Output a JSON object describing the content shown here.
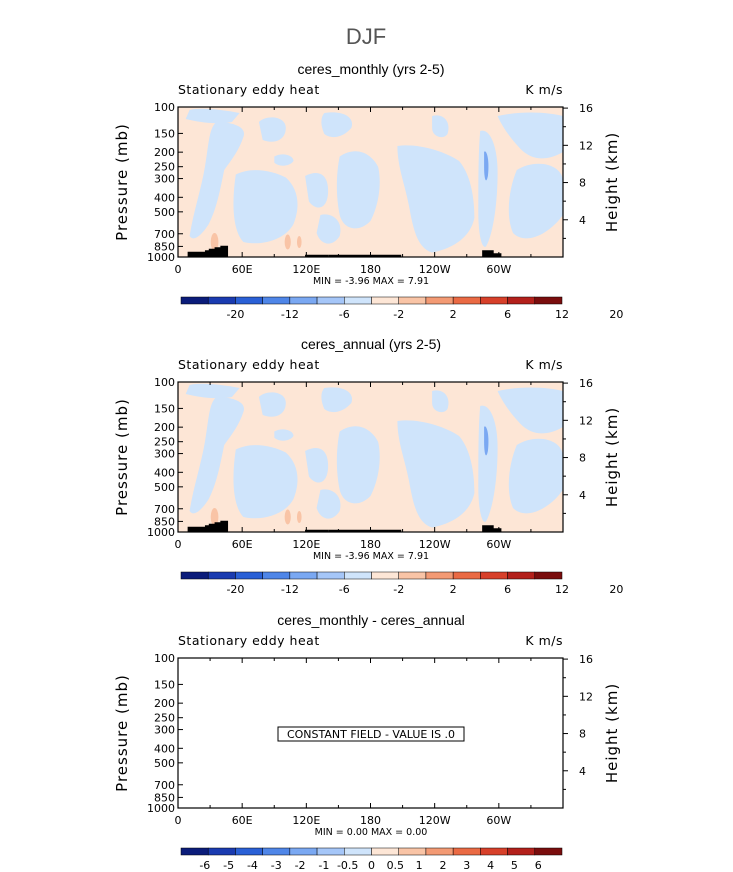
{
  "figure": {
    "season_title": "DJF"
  },
  "chart_data": [
    {
      "type": "heatmap",
      "title": "ceres_monthly (yrs 2-5)",
      "left_label": "Stationary eddy heat",
      "right_label": "K m/s",
      "ylabel": "Pressure (mb)",
      "ylabel_right": "Height (km)",
      "x_ticks": [
        "0",
        "60E",
        "120E",
        "180",
        "120W",
        "60W"
      ],
      "x_tick_lon": [
        0,
        60,
        120,
        180,
        240,
        300
      ],
      "xlim": [
        0,
        360
      ],
      "y_ticks": [
        "100",
        "150",
        "200",
        "250",
        "300",
        "400",
        "500",
        "700",
        "850",
        "1000"
      ],
      "y_tick_p": [
        100,
        150,
        200,
        250,
        300,
        400,
        500,
        700,
        850,
        1000
      ],
      "ylim": [
        1000,
        100
      ],
      "y_scale": "log",
      "height_ticks": [
        "4",
        "8",
        "12",
        "16"
      ],
      "height_km": [
        4,
        8,
        12,
        16
      ],
      "stats": "MIN =  -3.96   MAX =   7.91",
      "colorbar_labels": [
        "-20",
        "-12",
        "-6",
        "-2",
        "2",
        "6",
        "12",
        "20"
      ],
      "constant_field": ""
    },
    {
      "type": "heatmap",
      "title": "ceres_annual (yrs 2-5)",
      "left_label": "Stationary eddy heat",
      "right_label": "K m/s",
      "ylabel": "Pressure (mb)",
      "ylabel_right": "Height (km)",
      "x_ticks": [
        "0",
        "60E",
        "120E",
        "180",
        "120W",
        "60W"
      ],
      "x_tick_lon": [
        0,
        60,
        120,
        180,
        240,
        300
      ],
      "xlim": [
        0,
        360
      ],
      "y_ticks": [
        "100",
        "150",
        "200",
        "250",
        "300",
        "400",
        "500",
        "700",
        "850",
        "1000"
      ],
      "y_tick_p": [
        100,
        150,
        200,
        250,
        300,
        400,
        500,
        700,
        850,
        1000
      ],
      "ylim": [
        1000,
        100
      ],
      "y_scale": "log",
      "height_ticks": [
        "4",
        "8",
        "12",
        "16"
      ],
      "height_km": [
        4,
        8,
        12,
        16
      ],
      "stats": "MIN =  -3.96   MAX =   7.91",
      "colorbar_labels": [
        "-20",
        "-12",
        "-6",
        "-2",
        "2",
        "6",
        "12",
        "20"
      ],
      "constant_field": ""
    },
    {
      "type": "heatmap",
      "title": "ceres_monthly - ceres_annual",
      "left_label": "Stationary eddy heat",
      "right_label": "K m/s",
      "ylabel": "Pressure (mb)",
      "ylabel_right": "Height (km)",
      "x_ticks": [
        "0",
        "60E",
        "120E",
        "180",
        "120W",
        "60W"
      ],
      "x_tick_lon": [
        0,
        60,
        120,
        180,
        240,
        300
      ],
      "xlim": [
        0,
        360
      ],
      "y_ticks": [
        "100",
        "150",
        "200",
        "250",
        "300",
        "400",
        "500",
        "700",
        "850",
        "1000"
      ],
      "y_tick_p": [
        100,
        150,
        200,
        250,
        300,
        400,
        500,
        700,
        850,
        1000
      ],
      "ylim": [
        1000,
        100
      ],
      "y_scale": "log",
      "height_ticks": [
        "4",
        "8",
        "12",
        "16"
      ],
      "height_km": [
        4,
        8,
        12,
        16
      ],
      "stats": "MIN =    0.00   MAX =    0.00",
      "colorbar_labels": [
        "-6",
        "-5",
        "-4",
        "-3",
        "-2",
        "-1",
        "-0.5",
        "0",
        "0.5",
        "1",
        "2",
        "3",
        "4",
        "5",
        "6"
      ],
      "constant_field": "CONSTANT FIELD - VALUE IS .0"
    }
  ],
  "colors": {
    "positive_fill": "#fde6d6",
    "negative_fill": "#cfe4fb",
    "terrain": "#000000",
    "colorbar": [
      "#0b1c7a",
      "#1a3bb0",
      "#2a60d6",
      "#4f86e8",
      "#7aa8f2",
      "#a5c6f8",
      "#cfe4fb",
      "#fde6d6",
      "#f9c4a6",
      "#f39a74",
      "#ea6a44",
      "#d7402a",
      "#b3201b",
      "#7a0d0d"
    ]
  }
}
